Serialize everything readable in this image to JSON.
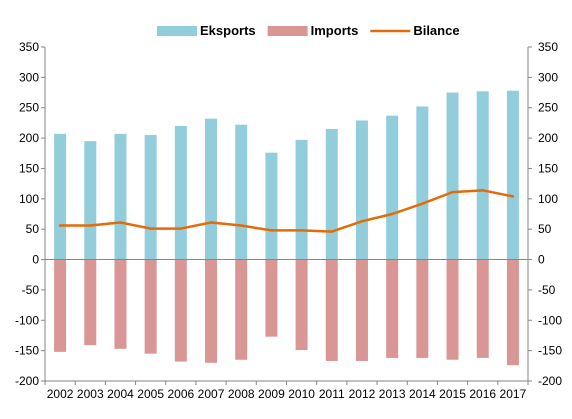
{
  "chart_data": {
    "type": "bar",
    "categories": [
      "2002",
      "2003",
      "2004",
      "2005",
      "2006",
      "2007",
      "2008",
      "2009",
      "2010",
      "2011",
      "2012",
      "2013",
      "2014",
      "2015",
      "2016",
      "2017"
    ],
    "series": [
      {
        "name": "Eksports",
        "type": "bar",
        "color": "#92cddc",
        "values": [
          207,
          195,
          207,
          205,
          220,
          232,
          222,
          176,
          197,
          215,
          229,
          237,
          252,
          275,
          277,
          278
        ]
      },
      {
        "name": "Imports",
        "type": "bar",
        "color": "#da9694",
        "values": [
          -152,
          -141,
          -147,
          -155,
          -168,
          -170,
          -165,
          -127,
          -149,
          -167,
          -167,
          -162,
          -162,
          -165,
          -162,
          -174
        ]
      },
      {
        "name": "Bilance",
        "type": "line",
        "color": "#e36c09",
        "values": [
          56,
          56,
          61,
          51,
          51,
          61,
          56,
          48,
          48,
          46,
          63,
          75,
          92,
          111,
          114,
          104
        ]
      }
    ],
    "ylim": [
      -200,
      350
    ],
    "yticks": [
      350,
      300,
      250,
      200,
      150,
      100,
      50,
      0,
      -50,
      -100,
      -150,
      -200
    ],
    "secondary_axis": true,
    "grid": false,
    "legend_position": "top"
  }
}
